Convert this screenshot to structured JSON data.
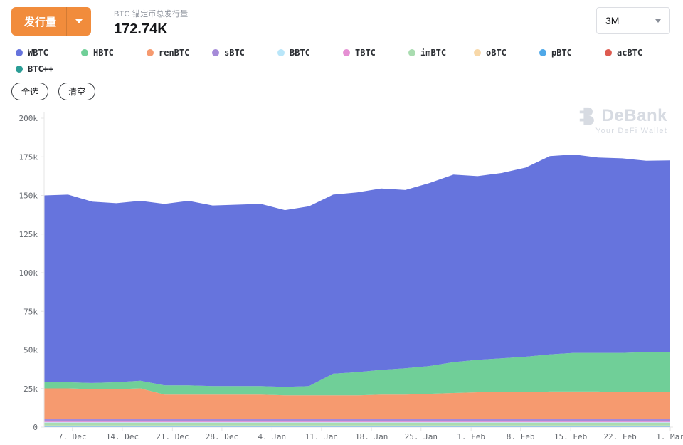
{
  "header": {
    "metric_button": {
      "label": "发行量",
      "color": "#F18C3C"
    },
    "title": "BTC 锚定币总发行量",
    "value": "172.74K",
    "range_select": {
      "value": "3M"
    }
  },
  "controls": {
    "select_all": "全选",
    "clear": "清空"
  },
  "legend": [
    {
      "name": "WBTC",
      "color": "#6674DD"
    },
    {
      "name": "HBTC",
      "color": "#70CF98"
    },
    {
      "name": "renBTC",
      "color": "#F69A6F"
    },
    {
      "name": "sBTC",
      "color": "#A58AD8"
    },
    {
      "name": "BBTC",
      "color": "#B9E6F9"
    },
    {
      "name": "TBTC",
      "color": "#E58FD3"
    },
    {
      "name": "imBTC",
      "color": "#A9DCB0"
    },
    {
      "name": "oBTC",
      "color": "#F8D8A8"
    },
    {
      "name": "pBTC",
      "color": "#4FA8E8"
    },
    {
      "name": "acBTC",
      "color": "#DE5B50"
    },
    {
      "name": "BTC++",
      "color": "#2B9D96"
    }
  ],
  "watermark": {
    "brand": "DeBank",
    "tagline": "Your DeFi Wallet"
  },
  "chart_data": {
    "type": "area",
    "stacked": true,
    "title": "BTC 锚定币总发行量",
    "current_total": "172.74K",
    "x_count": 27,
    "x_range": [
      "3. Dec",
      "1. Mar"
    ],
    "ylim": [
      0,
      200
    ],
    "y_unit": "k",
    "grid": false,
    "legend_position": "top",
    "y_ticks": [
      {
        "v": 0,
        "label": "0"
      },
      {
        "v": 25,
        "label": "25k"
      },
      {
        "v": 50,
        "label": "50k"
      },
      {
        "v": 75,
        "label": "75k"
      },
      {
        "v": 100,
        "label": "100k"
      },
      {
        "v": 125,
        "label": "125k"
      },
      {
        "v": 150,
        "label": "150k"
      },
      {
        "v": 175,
        "label": "175k"
      },
      {
        "v": 200,
        "label": "200k"
      }
    ],
    "x_ticks": [
      {
        "pos": 0.045,
        "label": "7. Dec"
      },
      {
        "pos": 0.125,
        "label": "14. Dec"
      },
      {
        "pos": 0.205,
        "label": "21. Dec"
      },
      {
        "pos": 0.284,
        "label": "28. Dec"
      },
      {
        "pos": 0.364,
        "label": "4. Jan"
      },
      {
        "pos": 0.443,
        "label": "11. Jan"
      },
      {
        "pos": 0.523,
        "label": "18. Jan"
      },
      {
        "pos": 0.602,
        "label": "25. Jan"
      },
      {
        "pos": 0.682,
        "label": "1. Feb"
      },
      {
        "pos": 0.761,
        "label": "8. Feb"
      },
      {
        "pos": 0.841,
        "label": "15. Feb"
      },
      {
        "pos": 0.92,
        "label": "22. Feb"
      },
      {
        "pos": 1.0,
        "label": "1. Mar"
      }
    ],
    "stack_order": [
      "acBTC",
      "BTC++",
      "pBTC",
      "oBTC",
      "imBTC",
      "BBTC",
      "TBTC",
      "sBTC",
      "renBTC",
      "HBTC",
      "WBTC"
    ],
    "series": [
      {
        "name": "acBTC",
        "color": "#DE5B50",
        "value": 0.1
      },
      {
        "name": "BTC++",
        "color": "#2B9D96",
        "value": 0.1
      },
      {
        "name": "pBTC",
        "color": "#4FA8E8",
        "value": 0.3
      },
      {
        "name": "oBTC",
        "color": "#F8D8A8",
        "value": 0.5
      },
      {
        "name": "imBTC",
        "color": "#A9DCB0",
        "value": 1.8
      },
      {
        "name": "BBTC",
        "color": "#B9E6F9",
        "value": 0.4
      },
      {
        "name": "TBTC",
        "color": "#E58FD3",
        "value": 0.9
      },
      {
        "name": "sBTC",
        "color": "#A58AD8",
        "value": 1.0
      },
      {
        "name": "renBTC",
        "color": "#F69A6F",
        "values": [
          20,
          20,
          19.5,
          19.5,
          20,
          16,
          16,
          16,
          16,
          16,
          15.5,
          15.5,
          15.5,
          15.5,
          16,
          16,
          16.5,
          17,
          17.5,
          17.5,
          17.5,
          18,
          18,
          18,
          17.5,
          17.5,
          17.5
        ]
      },
      {
        "name": "HBTC",
        "color": "#70CF98",
        "values": [
          4,
          4,
          4,
          4.5,
          5,
          6,
          6,
          5.5,
          5.5,
          5.5,
          5.5,
          6,
          14,
          15,
          16,
          17,
          18,
          20,
          21,
          22,
          23,
          24,
          25,
          25,
          25.5,
          26,
          26
        ]
      },
      {
        "name": "WBTC",
        "color": "#6674DD",
        "values": [
          120.9,
          121.4,
          117.4,
          115.9,
          116.4,
          117.4,
          119.4,
          116.9,
          117.4,
          117.9,
          114.4,
          116.4,
          115.9,
          116.4,
          117.4,
          115.4,
          118.4,
          121.4,
          118.9,
          119.9,
          122.4,
          128.4,
          128.4,
          126.4,
          125.9,
          123.9,
          124.1
        ]
      }
    ]
  }
}
